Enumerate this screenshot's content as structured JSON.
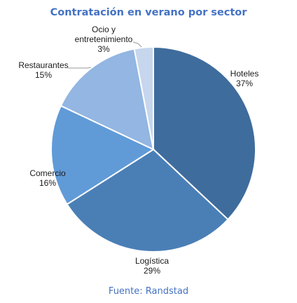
{
  "chart_data": {
    "type": "pie",
    "title": "Contratación en verano por sector",
    "source": "Fuente: Randstad",
    "slices": [
      {
        "label_lines": [
          "Hoteles"
        ],
        "value": 37,
        "value_label": "37%",
        "color": "#3e6c9c"
      },
      {
        "label_lines": [
          "Logística"
        ],
        "value": 29,
        "value_label": "29%",
        "color": "#4a7fb6"
      },
      {
        "label_lines": [
          "Comercio"
        ],
        "value": 16,
        "value_label": "16%",
        "color": "#609bd8"
      },
      {
        "label_lines": [
          "Restaurantes"
        ],
        "value": 15,
        "value_label": "15%",
        "color": "#93b6e2"
      },
      {
        "label_lines": [
          "Ocio y",
          "entretenimiento"
        ],
        "value": 3,
        "value_label": "3%",
        "color": "#c6d6ec"
      }
    ]
  }
}
